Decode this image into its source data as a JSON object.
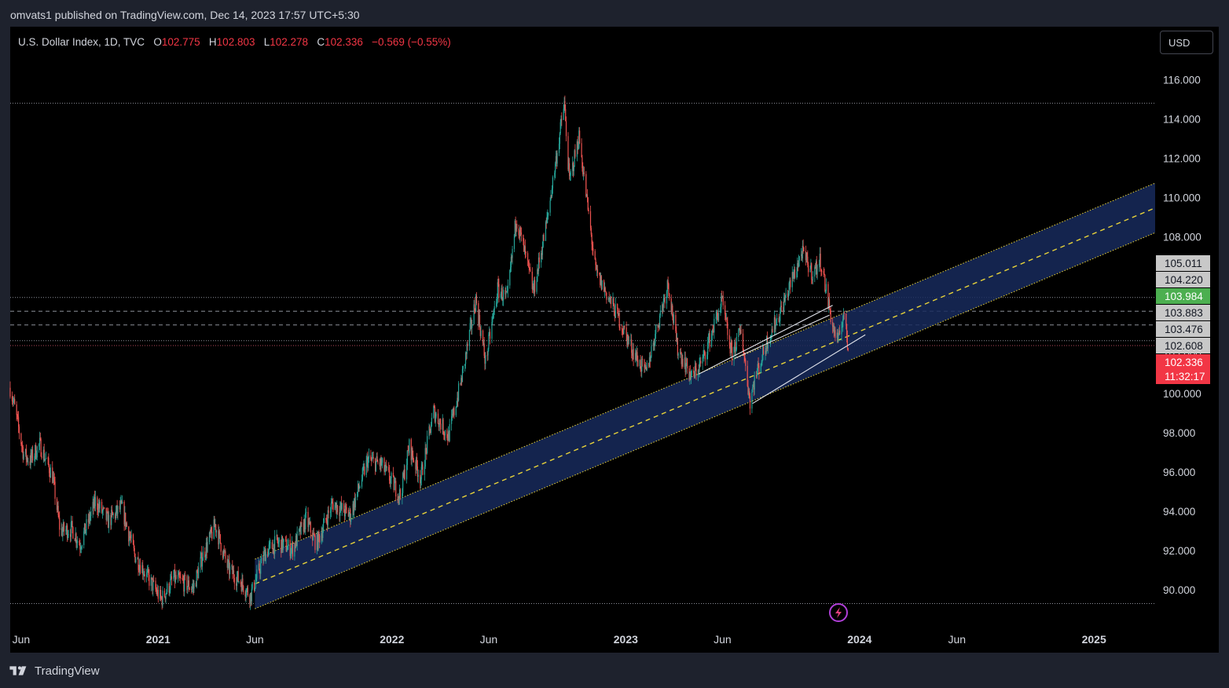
{
  "header": {
    "published": "omvats1 published on TradingView.com, Dec 14, 2023 17:57 UTC+5:30"
  },
  "legend": {
    "symbol": "U.S. Dollar Index, 1D, TVC",
    "open_label": "O",
    "open": "102.775",
    "high_label": "H",
    "high": "102.803",
    "low_label": "L",
    "low": "102.278",
    "close_label": "C",
    "close": "102.336",
    "change": "−0.569 (−0.55%)"
  },
  "currency_button": "USD",
  "brand": "TradingView",
  "colors": {
    "up": "#26a69a",
    "down": "#ef5350",
    "channel_fill": "#172a5c",
    "channel_line": "#e8d33a",
    "accent_green": "#4caf50",
    "accent_red": "#f23645",
    "label_grey": "#c8c8c8"
  },
  "chart_data": {
    "type": "candlestick",
    "title": "U.S. Dollar Index, 1D, TVC",
    "x_axis": {
      "start": "2020-05-15",
      "end": "2025-05-01",
      "tick_labels": [
        {
          "label": "Jun",
          "date": "2020-06-01",
          "major": false
        },
        {
          "label": "2021",
          "date": "2021-01-01",
          "major": true
        },
        {
          "label": "Jun",
          "date": "2021-06-01",
          "major": false
        },
        {
          "label": "2022",
          "date": "2022-01-01",
          "major": true
        },
        {
          "label": "Jun",
          "date": "2022-06-01",
          "major": false
        },
        {
          "label": "2023",
          "date": "2023-01-01",
          "major": true
        },
        {
          "label": "Jun",
          "date": "2023-06-01",
          "major": false
        },
        {
          "label": "2024",
          "date": "2024-01-01",
          "major": true
        },
        {
          "label": "Jun",
          "date": "2024-06-01",
          "major": false
        },
        {
          "label": "2025",
          "date": "2025-01-01",
          "major": true
        }
      ]
    },
    "y_axis": {
      "range": [
        88.2,
        118.7
      ],
      "tick_labels": [
        "90.000",
        "92.000",
        "94.000",
        "96.000",
        "98.000",
        "100.000",
        "102.000",
        "104.000",
        "106.000",
        "108.000",
        "110.000",
        "112.000",
        "114.000",
        "116.000"
      ]
    },
    "price_path": [
      [
        "2020-05-15",
        100.3
      ],
      [
        "2020-05-20",
        99.6
      ],
      [
        "2020-06-05",
        96.9
      ],
      [
        "2020-06-15",
        96.6
      ],
      [
        "2020-06-30",
        97.4
      ],
      [
        "2020-07-20",
        95.8
      ],
      [
        "2020-08-01",
        93.0
      ],
      [
        "2020-08-20",
        93.1
      ],
      [
        "2020-09-01",
        92.3
      ],
      [
        "2020-09-25",
        94.5
      ],
      [
        "2020-10-15",
        93.5
      ],
      [
        "2020-11-05",
        94.2
      ],
      [
        "2020-11-25",
        91.8
      ],
      [
        "2020-12-20",
        90.4
      ],
      [
        "2021-01-06",
        89.5
      ],
      [
        "2021-01-25",
        90.6
      ],
      [
        "2021-02-25",
        90.1
      ],
      [
        "2021-03-10",
        91.6
      ],
      [
        "2021-03-31",
        93.3
      ],
      [
        "2021-04-20",
        91.1
      ],
      [
        "2021-05-10",
        90.4
      ],
      [
        "2021-05-25",
        89.7
      ],
      [
        "2021-06-17",
        91.9
      ],
      [
        "2021-07-05",
        92.4
      ],
      [
        "2021-07-30",
        92.1
      ],
      [
        "2021-08-20",
        93.6
      ],
      [
        "2021-09-05",
        92.3
      ],
      [
        "2021-09-30",
        94.4
      ],
      [
        "2021-10-28",
        93.8
      ],
      [
        "2021-11-24",
        96.6
      ],
      [
        "2021-12-15",
        96.4
      ],
      [
        "2022-01-14",
        94.8
      ],
      [
        "2022-01-28",
        97.3
      ],
      [
        "2022-02-15",
        95.7
      ],
      [
        "2022-03-07",
        99.1
      ],
      [
        "2022-03-30",
        97.8
      ],
      [
        "2022-04-20",
        100.8
      ],
      [
        "2022-05-12",
        104.8
      ],
      [
        "2022-05-27",
        101.6
      ],
      [
        "2022-06-15",
        105.3
      ],
      [
        "2022-06-30",
        104.8
      ],
      [
        "2022-07-14",
        109.0
      ],
      [
        "2022-08-10",
        105.2
      ],
      [
        "2022-08-31",
        108.8
      ],
      [
        "2022-09-27",
        114.8
      ],
      [
        "2022-10-05",
        110.8
      ],
      [
        "2022-10-20",
        113.1
      ],
      [
        "2022-11-15",
        106.2
      ],
      [
        "2022-12-05",
        104.9
      ],
      [
        "2022-12-20",
        103.9
      ],
      [
        "2023-01-12",
        102.2
      ],
      [
        "2023-02-01",
        101.0
      ],
      [
        "2023-03-08",
        105.7
      ],
      [
        "2023-03-22",
        102.4
      ],
      [
        "2023-04-14",
        100.8
      ],
      [
        "2023-05-01",
        101.7
      ],
      [
        "2023-05-31",
        104.7
      ],
      [
        "2023-06-15",
        102.0
      ],
      [
        "2023-06-30",
        103.2
      ],
      [
        "2023-07-14",
        99.6
      ],
      [
        "2023-07-20",
        100.6
      ],
      [
        "2023-08-10",
        102.7
      ],
      [
        "2023-09-01",
        104.3
      ],
      [
        "2023-10-03",
        107.2
      ],
      [
        "2023-10-20",
        106.1
      ],
      [
        "2023-11-01",
        106.8
      ],
      [
        "2023-11-21",
        103.3
      ],
      [
        "2023-11-29",
        102.6
      ],
      [
        "2023-12-07",
        104.2
      ],
      [
        "2023-12-14",
        102.3
      ]
    ],
    "channel": {
      "start": {
        "date": "2021-06-01",
        "center": 90.3
      },
      "end": {
        "date": "2025-05-01",
        "center": 109.8
      },
      "half_width": 0.55
    },
    "trend_lines": [
      {
        "from": [
          "2023-04-25",
          101.0
        ],
        "to": [
          "2023-11-20",
          104.5
        ]
      },
      {
        "from": [
          "2023-06-20",
          101.8
        ],
        "to": [
          "2023-11-15",
          104.0
        ]
      },
      {
        "from": [
          "2023-07-18",
          99.5
        ],
        "to": [
          "2024-01-10",
          103.0
        ]
      }
    ],
    "horizontal_levels": [
      {
        "value": 114.8,
        "style": "dotted"
      },
      {
        "value": 104.9,
        "style": "dotted"
      },
      {
        "value": 104.2,
        "style": "dashed"
      },
      {
        "value": 103.5,
        "style": "dashed"
      },
      {
        "value": 102.7,
        "style": "dotted"
      },
      {
        "value": 102.45,
        "style": "dotted-red"
      },
      {
        "value": 89.3,
        "style": "dotted"
      }
    ],
    "price_labels": [
      {
        "label": "105.011",
        "kind": "grey"
      },
      {
        "label": "104.220",
        "kind": "grey"
      },
      {
        "label": "103.984",
        "kind": "green"
      },
      {
        "label": "103.883",
        "kind": "grey"
      },
      {
        "label": "103.476",
        "kind": "grey"
      },
      {
        "label": "102.608",
        "kind": "grey"
      },
      {
        "label": "102.336",
        "kind": "red",
        "sub": "11:32:17"
      }
    ],
    "last_price": 102.336,
    "countdown": "11:32:17"
  }
}
